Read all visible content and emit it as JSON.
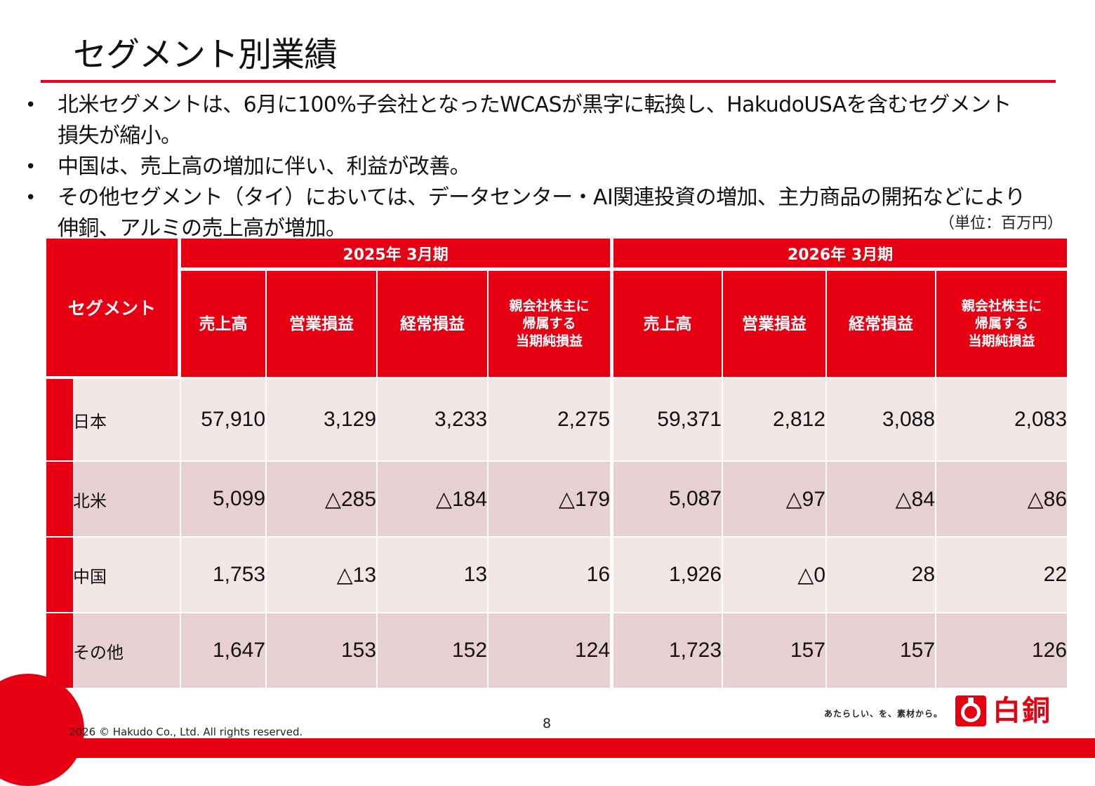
{
  "title": "セグメント別業績",
  "bullets": [
    {
      "line1": "北米セグメントは、6月に100%子会社となったWCASが黒字に転換し、HakudoUSAを含むセグメント",
      "line2": "損失が縮小。"
    },
    {
      "line1": "中国は、売上高の増加に伴い、利益が改善。",
      "line2": ""
    },
    {
      "line1": "その他セグメント（タイ）においては、データセンター・AI関連投資の増加、主力商品の開拓などにより",
      "line2": "伸銅、アルミの売上高が増加。"
    }
  ],
  "unit_note": "（単位：百万円）",
  "table": {
    "segment_header": "セグメント",
    "periods": [
      "2025年 3月期",
      "2026年 3月期"
    ],
    "columns": [
      "売上高",
      "営業損益",
      "経常損益",
      "親会社株主に",
      "帰属する",
      "当期純損益"
    ],
    "rows": [
      {
        "name": "日本",
        "values": [
          "57,910",
          "3,129",
          "3,233",
          "2,275",
          "59,371",
          "2,812",
          "3,088",
          "2,083"
        ]
      },
      {
        "name": "北米",
        "values": [
          "5,099",
          "△285",
          "△184",
          "△179",
          "5,087",
          "△97",
          "△84",
          "△86"
        ]
      },
      {
        "name": "中国",
        "values": [
          "1,753",
          "△13",
          "13",
          "16",
          "1,926",
          "△0",
          "28",
          "22"
        ]
      },
      {
        "name": "その他",
        "values": [
          "1,647",
          "153",
          "152",
          "124",
          "1,723",
          "157",
          "157",
          "126"
        ]
      }
    ]
  },
  "footer": {
    "copyright": "2026 © Hakudo Co., Ltd. All rights reserved.",
    "page_number": "8",
    "tagline": "あたらしい、を、素材から。",
    "logo_text": "白銅",
    "brand_color": "#e60012"
  }
}
